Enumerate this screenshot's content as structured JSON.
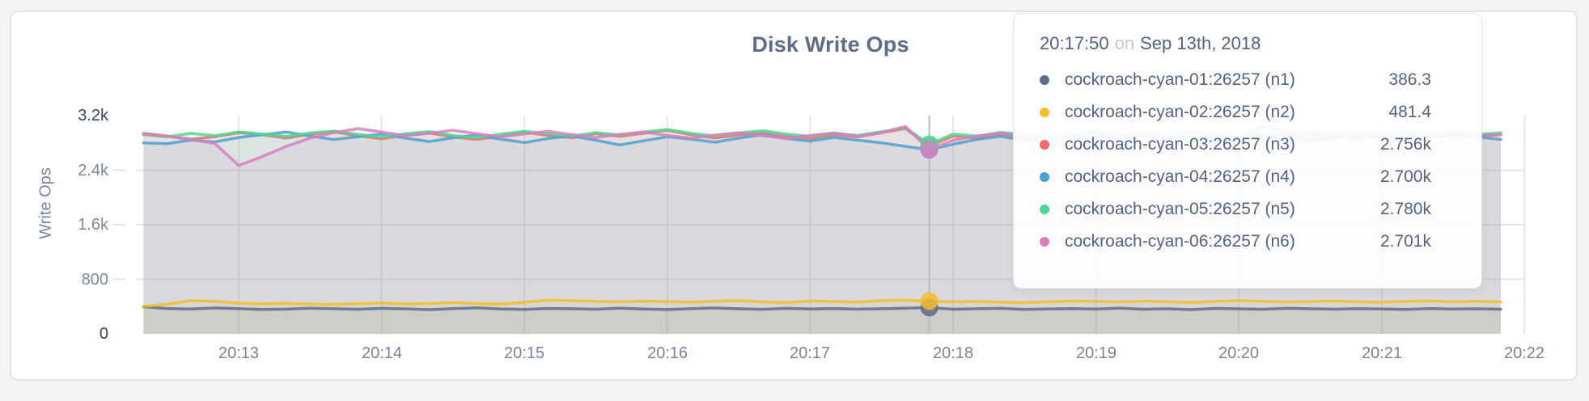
{
  "page": {
    "background_color": "#f4f4f5",
    "card_border_color": "#e4e4e6"
  },
  "chart": {
    "title": "Disk Write Ops",
    "ylabel": "Write Ops"
  },
  "chart_data": {
    "type": "line",
    "title": "Disk Write Ops",
    "xlabel": "",
    "ylabel": "Write Ops",
    "ylim": [
      0,
      3200
    ],
    "grid": true,
    "y_ticks": [
      {
        "label": "3.2k",
        "value": 3200,
        "emphasis": true
      },
      {
        "label": "2.4k",
        "value": 2400,
        "emphasis": false
      },
      {
        "label": "1.6k",
        "value": 1600,
        "emphasis": false
      },
      {
        "label": "800",
        "value": 800,
        "emphasis": false
      },
      {
        "label": "0",
        "value": 0,
        "emphasis": true
      }
    ],
    "x_tick_labels": [
      "20:13",
      "20:14",
      "20:15",
      "20:16",
      "20:17",
      "20:18",
      "20:19",
      "20:20",
      "20:21",
      "20:22"
    ],
    "x_start_time": "20:12:20",
    "x_interval_seconds": 10,
    "series": [
      {
        "name": "cockroach-cyan-01:26257 (n1)",
        "color": "#5F6C87",
        "values": [
          398,
          372,
          365,
          381,
          370,
          358,
          363,
          377,
          369,
          361,
          374,
          367,
          355,
          371,
          383,
          366,
          359,
          373,
          368,
          362,
          378,
          364,
          357,
          370,
          381,
          368,
          360,
          375,
          366,
          372,
          363,
          369,
          377,
          386.3,
          361,
          368,
          374,
          359,
          366,
          371,
          364,
          378,
          362,
          369,
          356,
          373,
          367,
          361,
          375,
          368,
          363,
          370,
          366,
          359,
          372,
          365,
          369,
          362
        ]
      },
      {
        "name": "cockroach-cyan-02:26257 (n2)",
        "color": "#F2BE2C",
        "values": [
          404,
          436,
          489,
          478,
          452,
          441,
          448,
          439,
          432,
          444,
          455,
          438,
          447,
          459,
          444,
          436,
          465,
          497,
          489,
          476,
          470,
          481,
          474,
          466,
          479,
          490,
          472,
          460,
          483,
          475,
          467,
          489,
          496,
          481.4,
          470,
          478,
          466,
          459,
          472,
          484,
          476,
          468,
          480,
          473,
          461,
          475,
          488,
          479,
          467,
          474,
          482,
          470,
          463,
          477,
          485,
          472,
          479,
          468
        ]
      },
      {
        "name": "cockroach-cyan-03:26257 (n3)",
        "color": "#F16969",
        "values": [
          2940,
          2900,
          2855,
          2890,
          2950,
          2920,
          2870,
          2930,
          2960,
          2905,
          2860,
          2915,
          2945,
          2890,
          2850,
          2900,
          2955,
          2910,
          2875,
          2935,
          2895,
          2940,
          2985,
          2920,
          2870,
          2915,
          2955,
          2900,
          2865,
          2920,
          2890,
          2950,
          3010,
          2756,
          2900,
          2870,
          2930,
          2895,
          2855,
          2910,
          2945,
          2885,
          2920,
          2860,
          2950,
          2905,
          2870,
          2925,
          2890,
          2935,
          2900,
          2865,
          2910,
          2940,
          2880,
          2915,
          2895,
          2920
        ]
      },
      {
        "name": "cockroach-cyan-04:26257 (n4)",
        "color": "#4E9FD1",
        "values": [
          2800,
          2790,
          2840,
          2815,
          2880,
          2920,
          2960,
          2900,
          2850,
          2890,
          2930,
          2870,
          2820,
          2875,
          2915,
          2855,
          2805,
          2865,
          2900,
          2840,
          2770,
          2830,
          2890,
          2855,
          2810,
          2870,
          2920,
          2865,
          2825,
          2880,
          2840,
          2800,
          2750,
          2700,
          2780,
          2850,
          2895,
          2840,
          2790,
          2845,
          2900,
          2855,
          2815,
          2870,
          2835,
          2790,
          2850,
          2905,
          2860,
          2820,
          2875,
          2915,
          2870,
          2830,
          2885,
          2930,
          2890,
          2850
        ]
      },
      {
        "name": "cockroach-cyan-05:26257 (n5)",
        "color": "#49D990",
        "values": [
          2920,
          2890,
          2940,
          2905,
          2960,
          2930,
          2895,
          2945,
          2975,
          2925,
          2885,
          2935,
          2965,
          2910,
          2875,
          2930,
          2970,
          2935,
          2900,
          2950,
          2915,
          2960,
          2995,
          2940,
          2900,
          2945,
          2980,
          2930,
          2895,
          2940,
          2910,
          2965,
          3020,
          2780,
          2930,
          2900,
          2955,
          2920,
          2885,
          2935,
          2970,
          2915,
          2950,
          2895,
          2975,
          2935,
          2905,
          2950,
          2920,
          2960,
          2930,
          2900,
          2940,
          2965,
          2915,
          2945,
          2925,
          2950
        ]
      },
      {
        "name": "cockroach-cyan-06:26257 (n6)",
        "color": "#D77FBF",
        "values": [
          2930,
          2895,
          2850,
          2790,
          2470,
          2600,
          2750,
          2870,
          2950,
          3010,
          2960,
          2905,
          2940,
          2985,
          2935,
          2890,
          2930,
          2970,
          2920,
          2880,
          2925,
          2960,
          2910,
          2870,
          2915,
          2950,
          2905,
          2865,
          2910,
          2945,
          2900,
          2950,
          3040,
          2701,
          2840,
          2900,
          2940,
          2890,
          2855,
          2905,
          2950,
          2895,
          2930,
          2875,
          2955,
          2910,
          2880,
          3050,
          2960,
          2860,
          2915,
          2950,
          2905,
          2870,
          2920,
          2945,
          2900,
          2925
        ]
      }
    ]
  },
  "tooltip": {
    "time": "20:17:50",
    "on_word": "on",
    "date": "Sep 13th, 2018",
    "hover_index": 33,
    "rows": [
      {
        "label": "cockroach-cyan-01:26257 (n1)",
        "value": "386.3",
        "color": "#5F6C87"
      },
      {
        "label": "cockroach-cyan-02:26257 (n2)",
        "value": "481.4",
        "color": "#F2BE2C"
      },
      {
        "label": "cockroach-cyan-03:26257 (n3)",
        "value": "2.756k",
        "color": "#F16969"
      },
      {
        "label": "cockroach-cyan-04:26257 (n4)",
        "value": "2.700k",
        "color": "#4E9FD1"
      },
      {
        "label": "cockroach-cyan-05:26257 (n5)",
        "value": "2.780k",
        "color": "#49D990"
      },
      {
        "label": "cockroach-cyan-06:26257 (n6)",
        "value": "2.701k",
        "color": "#D77FBF"
      }
    ]
  }
}
